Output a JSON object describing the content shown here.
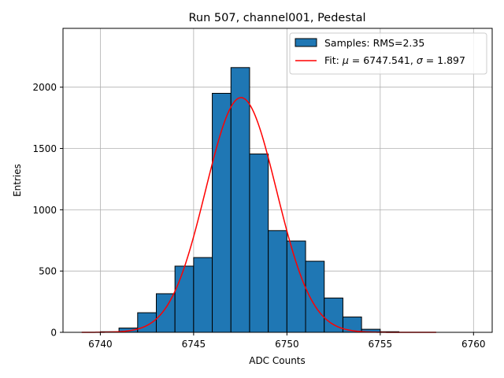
{
  "chart_data": {
    "type": "bar",
    "title": "Run 507, channel001, Pedestal",
    "xlabel": "ADC Counts",
    "ylabel": "Entries",
    "xlim": [
      6738.0,
      6761.0
    ],
    "ylim": [
      0,
      2480
    ],
    "grid": true,
    "legend_position": "top-right",
    "x_ticks": [
      6740,
      6745,
      6750,
      6755,
      6760
    ],
    "y_ticks": [
      0,
      500,
      1000,
      1500,
      2000
    ],
    "histogram": {
      "name": "Samples: RMS=2.35",
      "color": "#1f77b4",
      "bin_width": 1,
      "bins": [
        {
          "left": 6740,
          "count": 5
        },
        {
          "left": 6741,
          "count": 35
        },
        {
          "left": 6742,
          "count": 160
        },
        {
          "left": 6743,
          "count": 315
        },
        {
          "left": 6744,
          "count": 540
        },
        {
          "left": 6745,
          "count": 610
        },
        {
          "left": 6746,
          "count": 1950
        },
        {
          "left": 6747,
          "count": 2160
        },
        {
          "left": 6748,
          "count": 1455
        },
        {
          "left": 6749,
          "count": 830
        },
        {
          "left": 6750,
          "count": 745
        },
        {
          "left": 6751,
          "count": 580
        },
        {
          "left": 6752,
          "count": 280
        },
        {
          "left": 6753,
          "count": 125
        },
        {
          "left": 6754,
          "count": 25
        },
        {
          "left": 6755,
          "count": 5
        }
      ]
    },
    "fit": {
      "name": "Fit: μ = 6747.541, σ = 1.897",
      "label_prefix": "Fit: ",
      "mu_symbol": "μ",
      "mu_text": " = 6747.541, ",
      "sigma_symbol": "σ",
      "sigma_text": " = 1.897",
      "color": "#ff0000",
      "mu": 6747.541,
      "sigma": 1.897,
      "amplitude": 1915,
      "x_range": [
        6739,
        6758
      ]
    }
  }
}
